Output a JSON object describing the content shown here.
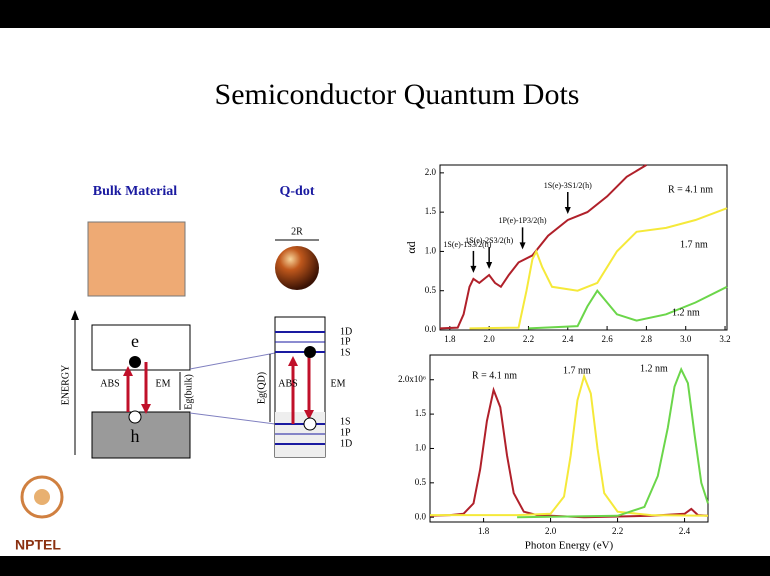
{
  "slide": {
    "title": "Semiconductor Quantum Dots",
    "logo": "NPTEL"
  },
  "diagram": {
    "bulk_title": "Bulk Material",
    "qdot_title": "Q-dot",
    "energy": "ENERGY",
    "bulk_e": "e",
    "bulk_h": "h",
    "bulk_abs": "ABS",
    "bulk_em": "EM",
    "bulk_gap": "Eg(bulk)",
    "qdot_size": "2R",
    "qdot_abs": "ABS",
    "qdot_em": "EM",
    "qdot_gap": "Eg(QD)",
    "upper_levels": [
      "1D",
      "1P",
      "1S"
    ],
    "lower_levels": [
      "1S",
      "1P",
      "1D"
    ]
  },
  "chart_data": [
    {
      "type": "line",
      "ylabel": "αd",
      "xlim": [
        1.75,
        3.21
      ],
      "ylim": [
        0,
        2.1
      ],
      "xticks": [
        1.8,
        {
          "value": 2.0,
          "label": "2.0"
        },
        2.2,
        2.4,
        2.6,
        2.8,
        {
          "value": 3.0,
          "label": "3.0"
        },
        3.2
      ],
      "yticks": [
        {
          "value": 0,
          "label": "0.0"
        },
        0.5,
        {
          "value": 1,
          "label": "1.0"
        },
        1.5,
        {
          "value": 2,
          "label": "2.0"
        }
      ],
      "series": [
        {
          "name": "R = 4.1 nm",
          "color": "#b0202a",
          "x": [
            1.75,
            1.84,
            1.87,
            1.9,
            1.92,
            1.95,
            1.98,
            2.0,
            2.03,
            2.06,
            2.1,
            2.15,
            2.22,
            2.3,
            2.4,
            2.5,
            2.6,
            2.7,
            2.8
          ],
          "values": [
            0.02,
            0.03,
            0.2,
            0.55,
            0.65,
            0.6,
            0.66,
            0.7,
            0.6,
            0.55,
            0.7,
            0.86,
            0.95,
            1.2,
            1.4,
            1.5,
            1.7,
            1.95,
            2.1
          ]
        },
        {
          "name": "1.7 nm",
          "color": "#f5e93a",
          "x": [
            1.9,
            2.15,
            2.19,
            2.22,
            2.24,
            2.27,
            2.32,
            2.45,
            2.55,
            2.65,
            2.75,
            2.9,
            3.05,
            3.21
          ],
          "values": [
            0.02,
            0.03,
            0.5,
            0.9,
            1.0,
            0.8,
            0.55,
            0.5,
            0.6,
            1.0,
            1.25,
            1.3,
            1.4,
            1.55
          ]
        },
        {
          "name": "1.2 nm",
          "color": "#6bd64a",
          "x": [
            2.2,
            2.45,
            2.5,
            2.55,
            2.6,
            2.65,
            2.75,
            2.9,
            3.05,
            3.21
          ],
          "values": [
            0.02,
            0.05,
            0.3,
            0.5,
            0.35,
            0.2,
            0.12,
            0.2,
            0.35,
            0.55
          ]
        }
      ],
      "annotations": [
        {
          "text": "1S(e)-1S3/2(h)",
          "x": 1.92
        },
        {
          "text": "1S(e)-2S3/2(h)",
          "x": 2.0
        },
        {
          "text": "1P(e)-1P3/2(h)",
          "x": 2.17
        },
        {
          "text": "1S(e)-3S1/2(h)",
          "x": 2.4
        }
      ]
    },
    {
      "type": "line",
      "xlabel": "Photon Energy (eV)",
      "xlim": [
        1.64,
        2.47
      ],
      "ylim": [
        -0.07,
        2.36
      ],
      "xticks": [
        1.8,
        {
          "value": 2.0,
          "label": "2.0"
        },
        2.2,
        2.4
      ],
      "yticks": [
        {
          "value": 0,
          "label": "0.0"
        },
        0.5,
        {
          "value": 1,
          "label": "1.0"
        },
        1.5,
        {
          "value": 2,
          "label": "2.0x10⁶"
        }
      ],
      "series": [
        {
          "name": "R = 4.1 nm",
          "color": "#b0202a",
          "x": [
            1.64,
            1.7,
            1.74,
            1.77,
            1.79,
            1.81,
            1.83,
            1.85,
            1.87,
            1.89,
            1.92,
            1.96,
            2.0,
            2.1,
            2.3,
            2.4,
            2.42,
            2.44,
            2.47
          ],
          "values": [
            0.02,
            0.03,
            0.05,
            0.2,
            0.7,
            1.4,
            1.85,
            1.6,
            0.9,
            0.35,
            0.08,
            0.03,
            0.02,
            0.0,
            0.02,
            0.05,
            0.12,
            0.03,
            0.02
          ]
        },
        {
          "name": "1.7 nm",
          "color": "#f5e93a",
          "x": [
            1.64,
            1.9,
            2.0,
            2.04,
            2.06,
            2.08,
            2.1,
            2.12,
            2.14,
            2.16,
            2.2,
            2.3,
            2.47
          ],
          "values": [
            0.03,
            0.03,
            0.05,
            0.3,
            0.9,
            1.7,
            2.05,
            1.8,
            1.0,
            0.35,
            0.08,
            0.03,
            0.02
          ]
        },
        {
          "name": "1.2 nm",
          "color": "#6bd64a",
          "x": [
            1.9,
            2.2,
            2.28,
            2.32,
            2.35,
            2.37,
            2.39,
            2.41,
            2.43,
            2.45,
            2.47
          ],
          "values": [
            0.0,
            0.02,
            0.15,
            0.6,
            1.3,
            1.9,
            2.15,
            1.95,
            1.2,
            0.5,
            0.2
          ]
        }
      ]
    }
  ]
}
